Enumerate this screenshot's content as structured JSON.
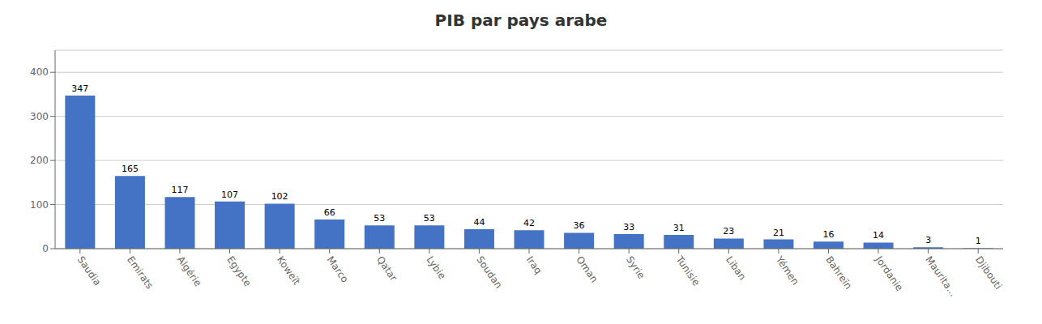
{
  "chart_data": {
    "type": "bar",
    "title": "PIB par pays arabe",
    "categories": [
      "Saudia",
      "Emirats",
      "Algérie",
      "Egypte",
      "Koweït",
      "Marco",
      "Qatar",
      "Lybie",
      "Soudan",
      "Iraq",
      "Oman",
      "Syrie",
      "Tunisie",
      "Liban",
      "Yémen",
      "Bahreïn",
      "Jordanie",
      "Maurita...",
      "Djibouti"
    ],
    "values": [
      347,
      165,
      117,
      107,
      102,
      66,
      53,
      53,
      44,
      42,
      36,
      33,
      31,
      23,
      21,
      16,
      14,
      3,
      1
    ],
    "color": "#4472C4",
    "ylim": [
      0,
      450
    ],
    "yticks": [
      0,
      100,
      200,
      300,
      400
    ],
    "grid": true,
    "data_labels": true
  }
}
